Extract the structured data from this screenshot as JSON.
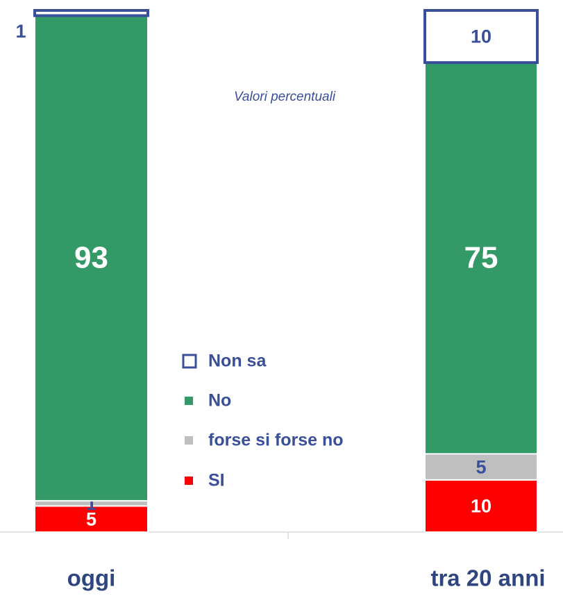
{
  "chart_data": {
    "type": "stacked_bar",
    "subtitle": "Valori percentuali",
    "categories": [
      "oggi",
      "tra 20 anni"
    ],
    "ylim": [
      0,
      100
    ],
    "series": [
      {
        "name": "SI",
        "color": "#ff0000",
        "values": [
          5,
          10
        ]
      },
      {
        "name": "forse si forse no",
        "color": "#bfbfbf",
        "values": [
          1,
          5
        ]
      },
      {
        "name": "No",
        "color": "#339966",
        "values": [
          93,
          75
        ]
      },
      {
        "name": "Non sa",
        "color": "#ffffff",
        "values": [
          1,
          10
        ]
      }
    ]
  }
}
